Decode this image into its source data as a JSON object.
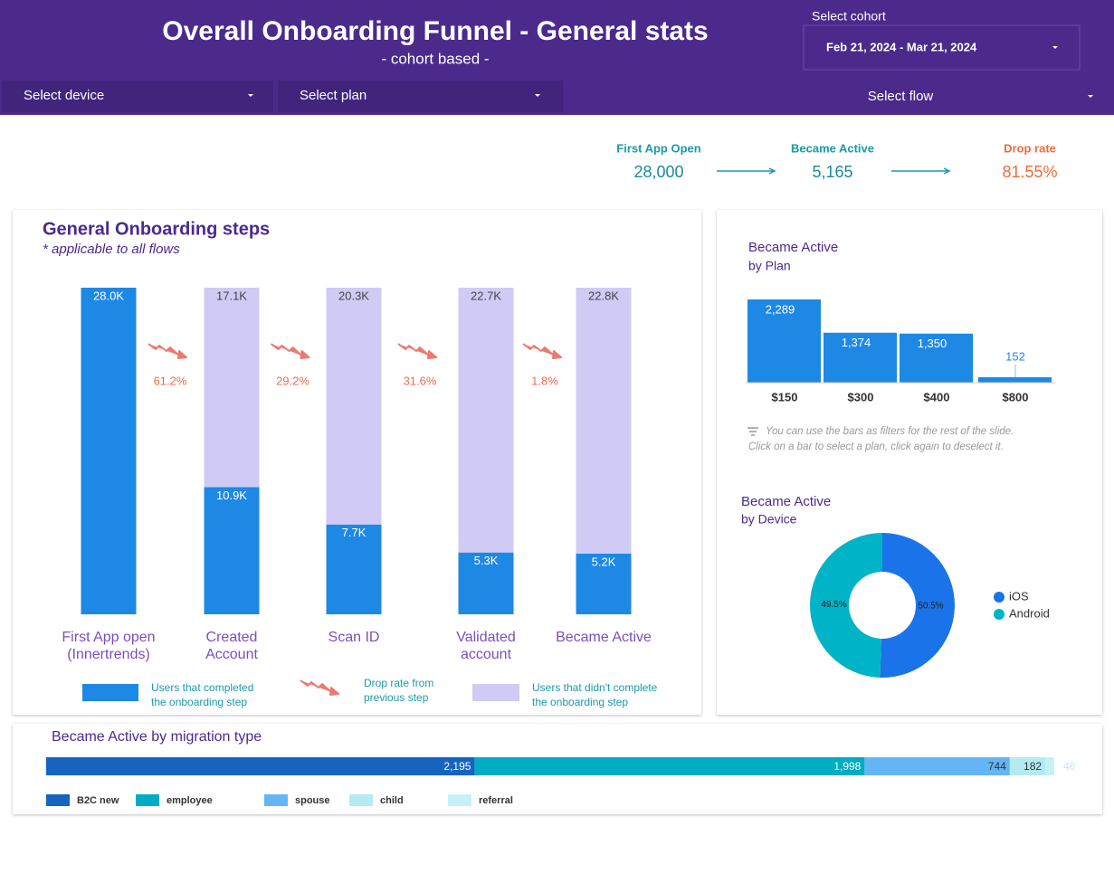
{
  "header": {
    "title": "Overall Onboarding Funnel  - General stats",
    "subtitle": "- cohort based -"
  },
  "filters": {
    "cohort_label": "Select cohort",
    "cohort_value": "Feb 21, 2024 - Mar 21, 2024",
    "device": "Select device",
    "plan": "Select plan",
    "flow": "Select flow"
  },
  "kpis": [
    {
      "label": "First App Open",
      "value": "28,000"
    },
    {
      "label": "Became Active",
      "value": "5,165"
    },
    {
      "label": "Drop rate",
      "value": "81.55%"
    }
  ],
  "onboarding": {
    "type": "bar",
    "stacked": true,
    "title": "General Onboarding steps",
    "subtitle": "* applicable to all flows",
    "categories": [
      [
        "First App open",
        "(Innertrends)"
      ],
      [
        "Created",
        "Account"
      ],
      [
        "Scan ID"
      ],
      [
        "Validated",
        "account"
      ],
      [
        "Became Active"
      ]
    ],
    "ylim": [
      0,
      28000
    ],
    "series": [
      {
        "name": [
          "Users that completed",
          "the onboarding step"
        ],
        "color": "#1e88e5",
        "values": [
          28000,
          10900,
          7700,
          5300,
          5200
        ],
        "value_labels": [
          "28.0K",
          "10.9K",
          "7.7K",
          "5.3K",
          "5.2K"
        ]
      },
      {
        "name": [
          "Users that didn't complete",
          "the onboarding step"
        ],
        "color": "#cfcbf5",
        "values": [
          null,
          17100,
          20300,
          22700,
          22800
        ],
        "value_labels": [
          null,
          "17.1K",
          "20.3K",
          "22.7K",
          "22.8K"
        ]
      }
    ],
    "drop_rates": {
      "name": [
        "Drop rate from",
        "previous step"
      ],
      "color": "#f26b4f",
      "values": [
        61.2,
        29.2,
        31.6,
        1.8
      ],
      "value_labels": [
        "61.2%",
        "29.2%",
        "31.6%",
        "1.8%"
      ]
    }
  },
  "plan_chart": {
    "type": "bar",
    "title": [
      "Became Active",
      "by Plan"
    ],
    "categories": [
      "$150",
      "$300",
      "$400",
      "$800"
    ],
    "values": [
      2289,
      1374,
      1350,
      152
    ],
    "value_labels": [
      "2,289",
      "1,374",
      "1,350",
      "152"
    ],
    "color": "#1e88e5",
    "ylim": [
      0,
      2289
    ],
    "note": [
      "You can use the bars as filters for the rest of the slide.",
      "Click on a bar to select a plan, click again to deselect it."
    ]
  },
  "device_chart": {
    "type": "pie",
    "donut": true,
    "title": [
      "Became Active",
      "by Device"
    ],
    "categories": [
      "iOS",
      "Android"
    ],
    "values": [
      50.5,
      49.5
    ],
    "value_labels": [
      "50.5%",
      "49.5%"
    ],
    "colors": [
      "#1a73e8",
      "#00b3c6"
    ]
  },
  "migration_chart": {
    "type": "bar",
    "orientation": "horizontal",
    "stacked": true,
    "title": "Became Active by migration type",
    "series": [
      {
        "name": "B2C new",
        "color": "#1565c0",
        "values": [
          2195
        ],
        "value_labels": [
          "2,195"
        ]
      },
      {
        "name": "employee",
        "color": "#00acc1",
        "values": [
          1998
        ],
        "value_labels": [
          "1,998"
        ]
      },
      {
        "name": "spouse",
        "color": "#64b5f6",
        "values": [
          744
        ],
        "value_labels": [
          "744"
        ]
      },
      {
        "name": "child",
        "color": "#b2ebf2",
        "values": [
          182
        ],
        "value_labels": [
          "182"
        ]
      },
      {
        "name": "referral",
        "color": "#c6f1f7",
        "values": [
          46
        ],
        "value_labels": [
          "46"
        ]
      }
    ]
  }
}
